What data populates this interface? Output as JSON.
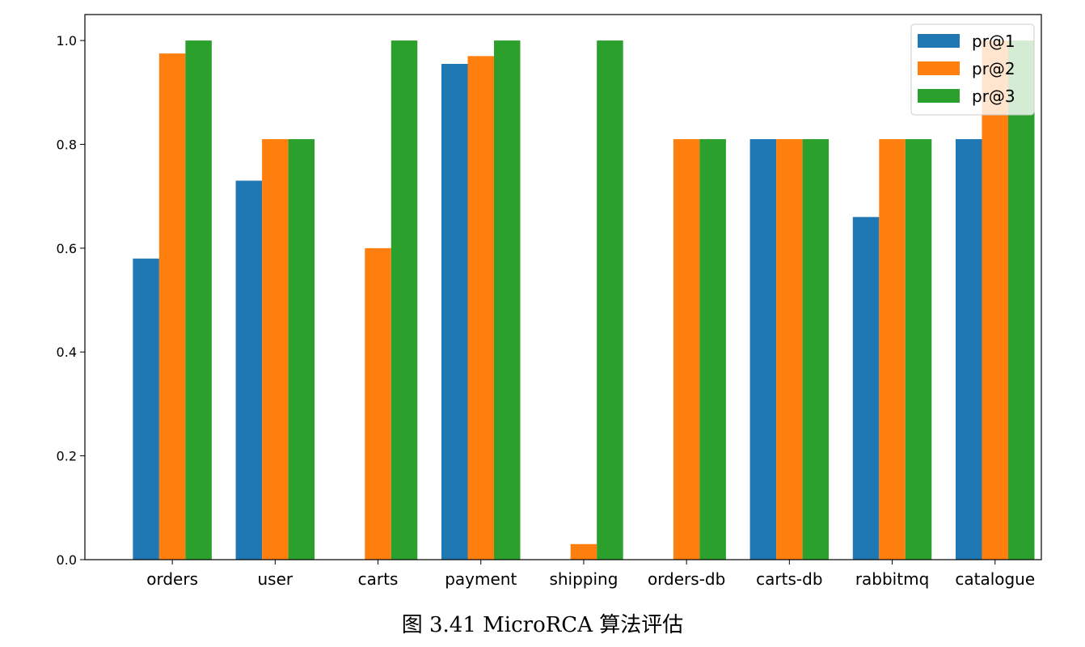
{
  "chart_data": {
    "type": "bar",
    "categories": [
      "orders",
      "user",
      "carts",
      "payment",
      "shipping",
      "orders-db",
      "carts-db",
      "rabbitmq",
      "catalogue"
    ],
    "series": [
      {
        "name": "pr@1",
        "color": "#1f77b4",
        "values": [
          0.58,
          0.73,
          0.0,
          0.955,
          0.0,
          0.0,
          0.81,
          0.66,
          0.81
        ]
      },
      {
        "name": "pr@2",
        "color": "#ff7f0e",
        "values": [
          0.975,
          0.81,
          0.6,
          0.97,
          0.03,
          0.81,
          0.81,
          0.81,
          1.0
        ]
      },
      {
        "name": "pr@3",
        "color": "#2ca02c",
        "values": [
          1.0,
          0.81,
          1.0,
          1.0,
          1.0,
          0.81,
          0.81,
          0.81,
          1.0
        ]
      }
    ],
    "yticks": [
      "0.0",
      "0.2",
      "0.4",
      "0.6",
      "0.8",
      "1.0"
    ],
    "ylim": [
      0,
      1.05
    ],
    "grid": false,
    "legend": "top-right"
  },
  "caption": "图 3.41 MicroRCA 算法评估"
}
